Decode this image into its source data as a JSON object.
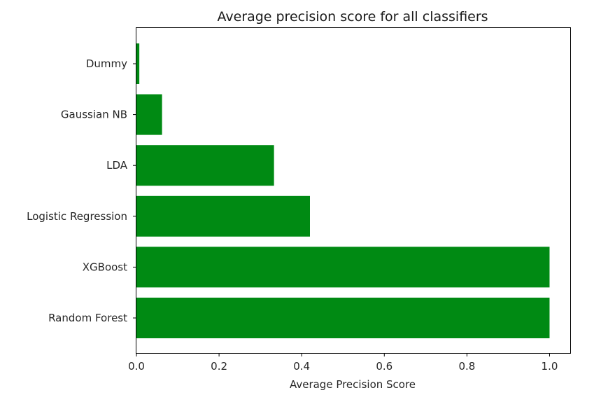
{
  "chart_data": {
    "type": "bar",
    "orientation": "horizontal",
    "title": "Average precision score for all classifiers",
    "xlabel": "Average Precision Score",
    "ylabel": "",
    "categories": [
      "Random Forest",
      "XGBoost",
      "Logistic Regression",
      "LDA",
      "Gaussian NB",
      "Dummy"
    ],
    "values": [
      1.0,
      1.0,
      0.42,
      0.333,
      0.062,
      0.007
    ],
    "xlim": [
      0.0,
      1.05
    ],
    "xticks": [
      "0.0",
      "0.2",
      "0.4",
      "0.6",
      "0.8",
      "1.0"
    ],
    "bar_color": "#008a13",
    "grid": false,
    "legend": "none"
  }
}
